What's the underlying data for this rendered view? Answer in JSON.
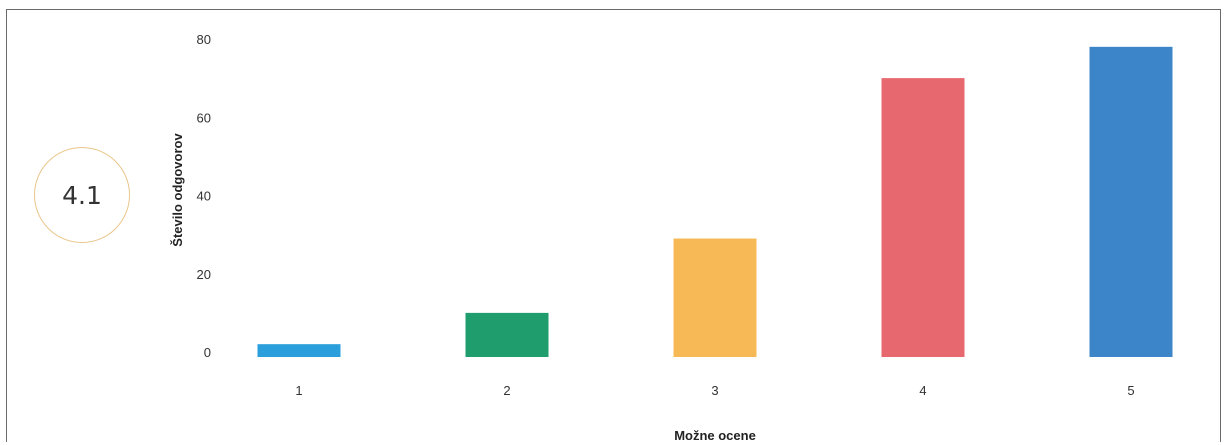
{
  "score_badge": {
    "value": "4.1"
  },
  "chart_data": {
    "type": "bar",
    "categories": [
      "1",
      "2",
      "3",
      "4",
      "5"
    ],
    "values": [
      2,
      10,
      29,
      70,
      78
    ],
    "colors": [
      "#2a9fdb",
      "#1f9d6c",
      "#f7b955",
      "#e8686f",
      "#3d85c9"
    ],
    "xlabel": "Možne ocene",
    "ylabel": "Število odgovorov",
    "ylim": [
      0,
      80
    ],
    "yticks": [
      0,
      20,
      40,
      60,
      80
    ],
    "grid": false,
    "legend": "none"
  }
}
